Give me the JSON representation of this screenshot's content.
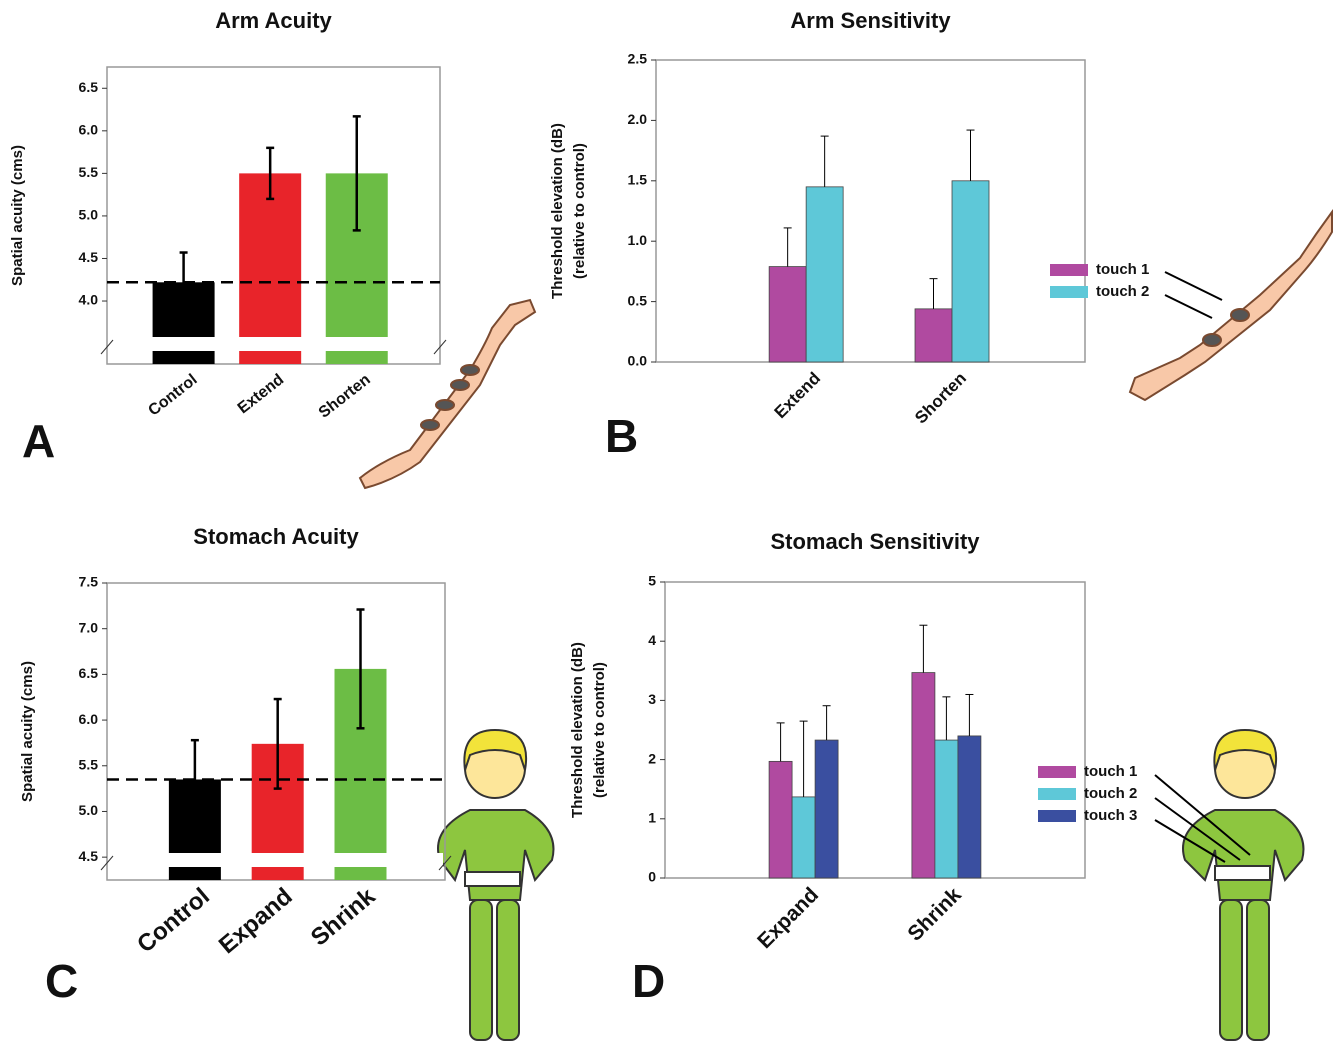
{
  "chart_data": [
    {
      "type": "bar",
      "title": "Arm Acuity",
      "panel_label": "A",
      "ylabel": [
        "Spatial acuity (cms)"
      ],
      "categories": [
        "Control",
        "Extend",
        "Shorten"
      ],
      "values": [
        4.22,
        5.5,
        5.5
      ],
      "errors": [
        0.35,
        0.3,
        0.67
      ],
      "colors": [
        "#000000",
        "#e8242a",
        "#6cbd45"
      ],
      "reference_line": 4.22,
      "ylim": [
        3.26,
        6.75
      ],
      "yticks": [
        {
          "value": 4,
          "label": "4.0"
        },
        4.5,
        {
          "value": 5,
          "label": "5.0"
        },
        5.5,
        {
          "value": 6,
          "label": "6.0"
        },
        6.5
      ]
    },
    {
      "type": "grouped-bar",
      "title": "Arm Sensitivity",
      "panel_label": "B",
      "ylabel": [
        "Threshold elevation (dB)",
        "(relative to control)"
      ],
      "categories": [
        "Extend",
        "Shorten"
      ],
      "series": [
        {
          "name": "touch 1",
          "color": "#b04aa0",
          "values": [
            0.79,
            0.44
          ],
          "errors": [
            0.32,
            0.25
          ]
        },
        {
          "name": "touch 2",
          "color": "#5ec8d8",
          "values": [
            1.45,
            1.5
          ],
          "errors": [
            0.42,
            0.42
          ]
        }
      ],
      "ylim": [
        0,
        2.5
      ],
      "yticks": [
        {
          "value": 0,
          "label": "0.0"
        },
        0.5,
        {
          "value": 1,
          "label": "1.0"
        },
        1.5,
        {
          "value": 2,
          "label": "2.0"
        },
        2.5
      ]
    },
    {
      "type": "bar",
      "title": "Stomach Acuity",
      "panel_label": "C",
      "ylabel": [
        "Spatial acuity (cms)"
      ],
      "categories": [
        "Control",
        "Expand",
        "Shrink"
      ],
      "values": [
        5.35,
        5.74,
        6.56
      ],
      "errors": [
        0.43,
        0.49,
        0.65
      ],
      "colors": [
        "#000000",
        "#e8242a",
        "#6cbd45"
      ],
      "reference_line": 5.35,
      "ylim": [
        4.25,
        7.5
      ],
      "yticks": [
        4.5,
        {
          "value": 5,
          "label": "5.0"
        },
        5.5,
        {
          "value": 6,
          "label": "6.0"
        },
        6.5,
        {
          "value": 7,
          "label": "7.0"
        },
        7.5
      ]
    },
    {
      "type": "grouped-bar",
      "title": "Stomach Sensitivity",
      "panel_label": "D",
      "ylabel": [
        "Threshold elevation (dB)",
        "(relative to control)"
      ],
      "categories": [
        "Expand",
        "Shrink"
      ],
      "series": [
        {
          "name": "touch 1",
          "color": "#b04aa0",
          "values": [
            1.97,
            3.47
          ],
          "errors": [
            0.65,
            0.8
          ]
        },
        {
          "name": "touch 2",
          "color": "#5ec8d8",
          "values": [
            1.37,
            2.33
          ],
          "errors": [
            1.28,
            0.73
          ]
        },
        {
          "name": "touch 3",
          "color": "#3a4fa0",
          "values": [
            2.33,
            2.4
          ],
          "errors": [
            0.58,
            0.7
          ]
        }
      ],
      "ylim": [
        0,
        5
      ],
      "yticks": [
        0,
        1,
        2,
        3,
        4,
        5
      ]
    }
  ]
}
